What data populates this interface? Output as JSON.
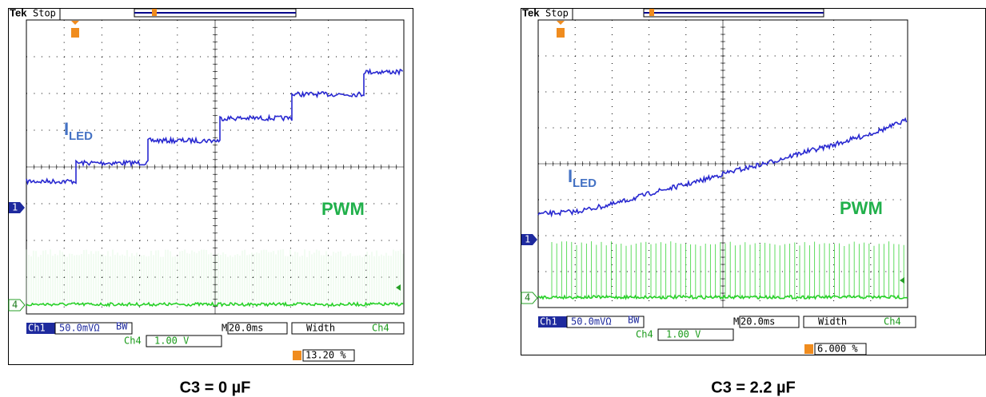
{
  "panels": [
    {
      "header": {
        "brand": "Tek",
        "status": "Stop"
      },
      "trace_labels": {
        "iled": "I",
        "iled_sub": "LED",
        "pwm": "PWM"
      },
      "markers": {
        "ch1": "1",
        "ch4": "4"
      },
      "readout": {
        "ch1": "Ch1",
        "ch1_scale": "50.0mVΩ",
        "bw": "BW",
        "timebase_prefix": "M",
        "timebase": "20.0ms",
        "measure": "Width",
        "measure_source": "Ch4",
        "ch4": "Ch4",
        "ch4_scale": "1.00 V",
        "measure_value": "13.20 %"
      },
      "caption": "C3 = 0 µF"
    },
    {
      "header": {
        "brand": "Tek",
        "status": "Stop"
      },
      "trace_labels": {
        "iled": "I",
        "iled_sub": "LED",
        "pwm": "PWM"
      },
      "markers": {
        "ch1": "1",
        "ch4": "4"
      },
      "readout": {
        "ch1": "Ch1",
        "ch1_scale": "50.0mVΩ",
        "bw": "BW",
        "timebase_prefix": "M",
        "timebase": "20.0ms",
        "measure": "Width",
        "measure_source": "Ch4",
        "ch4": "Ch4",
        "ch4_scale": "1.00 V",
        "measure_value": "6.000 %"
      },
      "caption": "C3 = 2.2 µF"
    }
  ]
}
